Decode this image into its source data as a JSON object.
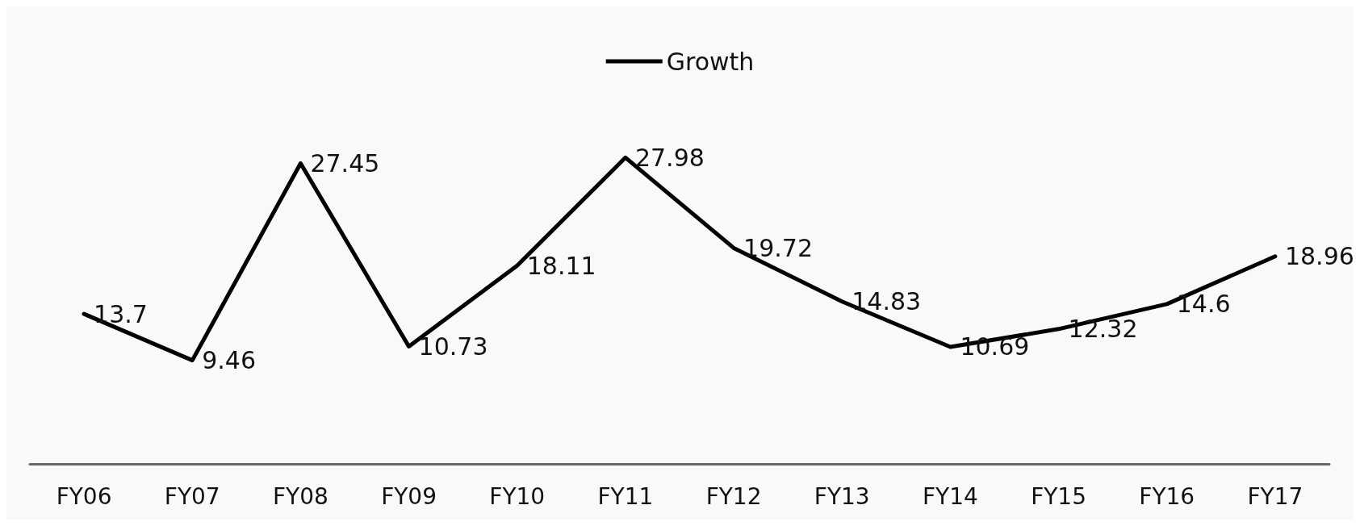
{
  "chart_data": {
    "type": "line",
    "categories": [
      "FY06",
      "FY07",
      "FY08",
      "FY09",
      "FY10",
      "FY11",
      "FY12",
      "FY13",
      "FY14",
      "FY15",
      "FY16",
      "FY17"
    ],
    "series": [
      {
        "name": "Growth",
        "color": "#000000",
        "values": [
          13.7,
          9.46,
          27.45,
          10.73,
          18.11,
          27.98,
          19.72,
          14.83,
          10.69,
          12.32,
          14.6,
          18.96
        ]
      }
    ],
    "data_labels": true,
    "legend": "top",
    "grid": false,
    "marker": "none",
    "line_style": "solid",
    "tick_labels": "x"
  }
}
